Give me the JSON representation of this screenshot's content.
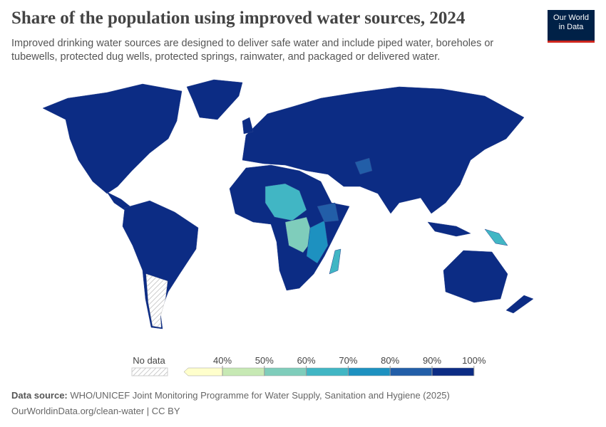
{
  "header": {
    "title": "Share of the population using improved water sources, 2024",
    "subtitle": "Improved drinking water sources are designed to deliver safe water and include piped water, boreholes or tubewells, protected dug wells, protected springs, rainwater, and packaged or delivered water."
  },
  "logo": {
    "line1": "Our World",
    "line2": "in Data"
  },
  "legend": {
    "no_data": "No data",
    "labels": [
      "40%",
      "50%",
      "60%",
      "70%",
      "80%",
      "90%",
      "100%"
    ],
    "colors": [
      "#ffffcc",
      "#c7e9b4",
      "#7fcdbb",
      "#41b6c4",
      "#1d91c0",
      "#225ea8",
      "#0c2c84"
    ]
  },
  "footer": {
    "source_label": "Data source:",
    "source_text": "WHO/UNICEF Joint Monitoring Programme for Water Supply, Sanitation and Hygiene (2025)",
    "link": "OurWorldinData.org/clean-water | CC BY"
  }
}
